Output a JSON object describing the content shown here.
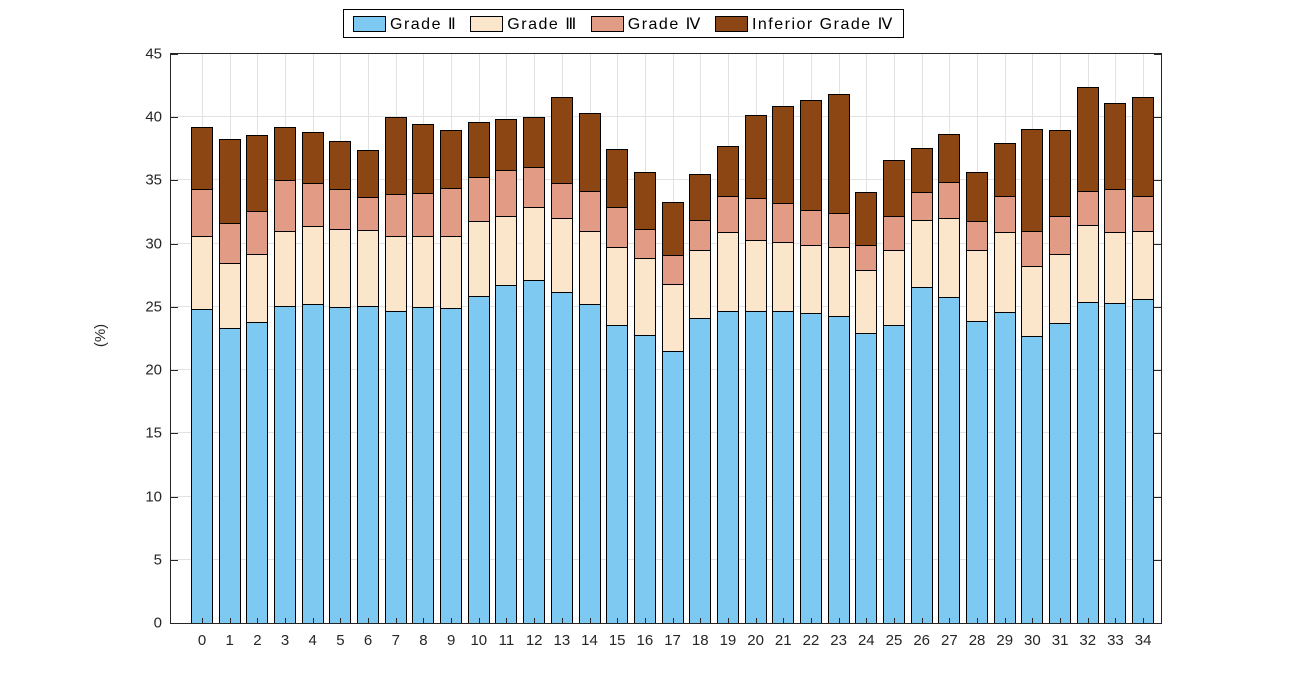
{
  "figure": {
    "background": "#ffffff"
  },
  "chart_data": {
    "type": "bar",
    "stacked": true,
    "title": "",
    "xlabel": "",
    "ylabel": "(%)",
    "ylim": [
      0,
      45
    ],
    "yticks": [
      0,
      5,
      10,
      15,
      20,
      25,
      30,
      35,
      40,
      45
    ],
    "grid": true,
    "legend_position": "top-center",
    "bar_outline_color": "#000000",
    "categories": [
      "0",
      "1",
      "2",
      "3",
      "4",
      "5",
      "6",
      "7",
      "8",
      "9",
      "10",
      "11",
      "12",
      "13",
      "14",
      "15",
      "16",
      "17",
      "18",
      "19",
      "20",
      "21",
      "22",
      "23",
      "24",
      "25",
      "26",
      "27",
      "28",
      "29",
      "30",
      "31",
      "32",
      "33",
      "34"
    ],
    "series": [
      {
        "name": "Grade Ⅱ",
        "color": "#7EC9F1",
        "values": [
          24.8,
          23.3,
          23.8,
          25.1,
          25.2,
          25.0,
          25.1,
          24.7,
          25.0,
          24.9,
          25.9,
          26.7,
          27.1,
          26.2,
          25.2,
          23.6,
          22.8,
          21.5,
          24.1,
          24.7,
          24.7,
          24.7,
          24.5,
          24.3,
          22.9,
          23.6,
          26.6,
          25.8,
          23.9,
          24.6,
          22.7,
          23.7,
          25.4,
          25.3,
          25.6
        ]
      },
      {
        "name": "Grade Ⅲ",
        "color": "#FCE6CB",
        "values": [
          5.8,
          5.2,
          5.4,
          5.9,
          6.2,
          6.2,
          6.0,
          5.9,
          5.6,
          5.7,
          5.9,
          5.5,
          5.8,
          5.8,
          5.8,
          6.1,
          6.1,
          5.3,
          5.4,
          6.2,
          5.6,
          5.4,
          5.4,
          5.4,
          5.0,
          5.9,
          5.3,
          6.2,
          5.6,
          6.3,
          5.5,
          5.5,
          6.1,
          5.6,
          5.4
        ]
      },
      {
        "name": "Grade Ⅳ",
        "color": "#E29B84",
        "values": [
          3.7,
          3.1,
          3.4,
          4.0,
          3.4,
          3.1,
          2.6,
          3.3,
          3.4,
          3.8,
          3.5,
          3.6,
          3.2,
          2.8,
          3.2,
          3.2,
          2.3,
          2.3,
          2.4,
          2.9,
          3.3,
          3.1,
          2.8,
          2.7,
          2.0,
          2.7,
          2.2,
          2.9,
          2.3,
          2.9,
          2.8,
          3.0,
          2.7,
          3.4,
          2.8
        ]
      },
      {
        "name": "Inferior Grade Ⅳ",
        "color": "#8C4613",
        "values": [
          4.9,
          6.7,
          6.0,
          4.2,
          4.0,
          3.8,
          3.7,
          6.1,
          5.5,
          4.6,
          4.3,
          4.1,
          3.9,
          6.8,
          6.1,
          4.6,
          4.5,
          4.2,
          3.6,
          3.9,
          6.6,
          7.7,
          8.7,
          9.4,
          4.2,
          4.4,
          3.5,
          3.8,
          3.9,
          4.2,
          8.1,
          6.8,
          8.2,
          6.8,
          7.8
        ]
      }
    ]
  }
}
